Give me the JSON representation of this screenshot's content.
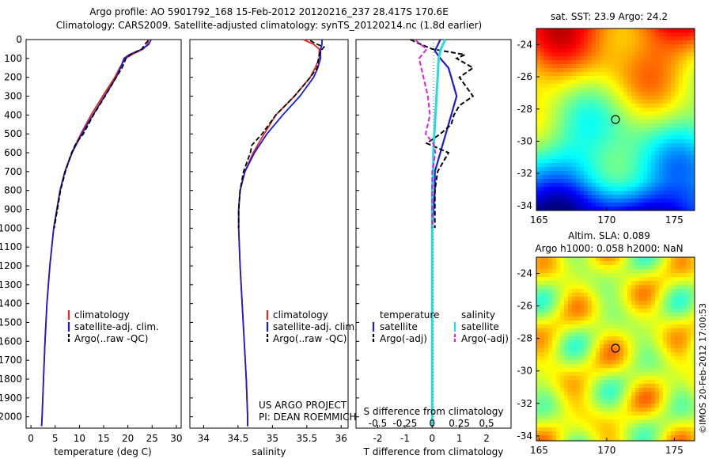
{
  "header": {
    "line1": "Argo profile: AO 5901792_168 15-Feb-2012 20120216_237 28.417S 170.6E",
    "line2": "Climatology: CARS2009. Satellite-adjusted climatology: synTS_20120214.nc (1.8d earlier)"
  },
  "colors": {
    "climatology": "#e8251c",
    "satellite_adj": "#1a1ad8",
    "argo": "#000000",
    "sal_satellite": "#22dddd",
    "sal_argo": "#dd22dd"
  },
  "depth_axis": {
    "ticks": [
      "0",
      "100",
      "200",
      "300",
      "400",
      "500",
      "600",
      "700",
      "800",
      "900",
      "1000",
      "1100",
      "1200",
      "1300",
      "1400",
      "1500",
      "1600",
      "1700",
      "1800",
      "1900",
      "2000"
    ]
  },
  "panels": {
    "temperature": {
      "xlabel": "temperature (deg C)",
      "xticks": [
        "0",
        "5",
        "10",
        "15",
        "20",
        "25",
        "30"
      ],
      "legend": [
        "climatology",
        "satellite-adj. clim.",
        "Argo(..raw -QC)"
      ]
    },
    "salinity": {
      "xlabel": "salinity",
      "xticks": [
        "34",
        "34.5",
        "35",
        "35.5",
        "36"
      ],
      "legend": [
        "climatology",
        "satellite-adj. clim.",
        "Argo(..raw -QC)"
      ],
      "credit1": "US ARGO PROJECT",
      "credit2": "PI: DEAN ROEMMICH"
    },
    "difference": {
      "legend_title_t": "temperature",
      "legend_title_s": "salinity",
      "legend_t": [
        "satellite",
        "Argo(-adj)"
      ],
      "legend_s": [
        "satellite",
        "Argo(-adj)"
      ],
      "top_label": "S difference from climatology",
      "top_ticks": [
        "-0.5",
        "-0.25",
        "0",
        "0.25",
        "0.5"
      ],
      "bottom_ticks": [
        "-2",
        "-1",
        "0",
        "1",
        "2"
      ],
      "xlabel": "T difference from climatology"
    }
  },
  "maps": {
    "sst": {
      "title": "sat. SST: 23.9 Argo: 24.2",
      "yticks": [
        "-24",
        "-26",
        "-28",
        "-30",
        "-32",
        "-34"
      ],
      "xticks": [
        "165",
        "170",
        "175"
      ]
    },
    "sla": {
      "title1": "Altim. SLA: 0.089",
      "title2": "Argo h1000: 0.058 h2000: NaN",
      "yticks": [
        "-24",
        "-26",
        "-28",
        "-30",
        "-32",
        "-34"
      ],
      "xticks": [
        "165",
        "170",
        "175"
      ]
    },
    "footer": "©IMOS 20-Feb-2012 17:00:53"
  },
  "chart_data": [
    {
      "type": "line",
      "ylabel": "",
      "xlabel": "temperature (deg C)",
      "xlim": [
        -1,
        31
      ],
      "ylim": [
        2060,
        0
      ],
      "series": [
        {
          "name": "climatology",
          "depth": [
            0,
            25,
            50,
            80,
            100,
            150,
            200,
            300,
            400,
            500,
            600,
            700,
            800,
            1000,
            1200,
            1400,
            1600,
            1800,
            2000,
            2050
          ],
          "values": [
            24.3,
            24.0,
            23.2,
            20.8,
            19.5,
            18.3,
            17.3,
            14.8,
            12.4,
            10.3,
            8.4,
            7.0,
            6.0,
            4.7,
            3.9,
            3.3,
            2.9,
            2.6,
            2.3,
            2.2
          ]
        },
        {
          "name": "satellite-adj. clim.",
          "depth": [
            0,
            25,
            50,
            80,
            100,
            150,
            200,
            300,
            400,
            500,
            600,
            700,
            800,
            1000,
            1200,
            1400,
            1600,
            1800,
            2000,
            2050
          ],
          "values": [
            24.8,
            24.3,
            23.0,
            20.3,
            19.2,
            18.5,
            17.6,
            15.2,
            12.8,
            10.5,
            8.5,
            7.0,
            6.0,
            4.7,
            3.9,
            3.3,
            2.9,
            2.6,
            2.3,
            2.2
          ]
        },
        {
          "name": "Argo(..raw -QC)",
          "depth": [
            5,
            25,
            50,
            80,
            100,
            150,
            200,
            300,
            400,
            500,
            550,
            600,
            700,
            800,
            1000
          ],
          "values": [
            24.2,
            23.5,
            22.9,
            20.5,
            19.6,
            18.8,
            17.6,
            15.3,
            12.9,
            10.8,
            9.3,
            8.4,
            7.1,
            6.1,
            4.8
          ]
        }
      ]
    },
    {
      "type": "line",
      "xlabel": "salinity",
      "xlim": [
        33.8,
        36.1
      ],
      "ylim": [
        2060,
        0
      ],
      "series": [
        {
          "name": "climatology",
          "depth": [
            0,
            25,
            50,
            100,
            150,
            200,
            300,
            400,
            500,
            600,
            700,
            800,
            900,
            1000,
            1200,
            1400,
            1600,
            1800,
            2000,
            2050
          ],
          "values": [
            35.45,
            35.6,
            35.68,
            35.68,
            35.62,
            35.55,
            35.32,
            35.05,
            34.88,
            34.72,
            34.6,
            34.53,
            34.51,
            34.51,
            34.53,
            34.56,
            34.59,
            34.62,
            34.64,
            34.64
          ]
        },
        {
          "name": "satellite-adj. clim.",
          "depth": [
            0,
            25,
            50,
            100,
            150,
            200,
            300,
            400,
            500,
            600,
            700,
            800,
            900,
            1000,
            1200,
            1400,
            1600,
            1800,
            2000,
            2050
          ],
          "values": [
            35.72,
            35.72,
            35.7,
            35.7,
            35.66,
            35.6,
            35.4,
            35.15,
            34.92,
            34.74,
            34.6,
            34.53,
            34.51,
            34.51,
            34.53,
            34.56,
            34.59,
            34.62,
            34.64,
            34.64
          ]
        },
        {
          "name": "Argo(..raw -QC)",
          "depth": [
            5,
            20,
            40,
            60,
            80,
            100,
            150,
            200,
            300,
            400,
            500,
            560,
            600,
            700,
            800,
            900,
            1000
          ],
          "values": [
            35.55,
            35.62,
            35.75,
            35.7,
            35.68,
            35.67,
            35.65,
            35.55,
            35.32,
            35.05,
            34.85,
            34.7,
            34.68,
            34.58,
            34.53,
            34.51,
            34.51
          ]
        }
      ]
    },
    {
      "type": "line",
      "xlabel": "T difference from climatology",
      "xlim": [
        -2.8,
        2.9
      ],
      "ylim": [
        2060,
        0
      ],
      "series": [
        {
          "name": "temperature satellite",
          "depth": [
            0,
            30,
            60,
            100,
            150,
            200,
            250,
            300,
            350,
            400,
            450,
            500,
            550,
            600,
            700,
            800,
            900,
            1000,
            1200,
            1400,
            1600,
            1800,
            2000,
            2050
          ],
          "values": [
            0.3,
            0.2,
            0.1,
            0.3,
            0.6,
            0.7,
            0.8,
            0.9,
            0.8,
            0.7,
            0.6,
            0.5,
            0.4,
            0.3,
            0.1,
            0.1,
            0.05,
            0.0,
            0.0,
            0.0,
            0.0,
            0.0,
            0.0,
            0.0
          ]
        },
        {
          "name": "temperature Argo(-adj)",
          "depth": [
            0,
            20,
            50,
            80,
            100,
            150,
            200,
            300,
            350,
            400,
            450,
            500,
            550,
            600,
            700,
            800,
            900,
            1000
          ],
          "values": [
            -0.8,
            -0.5,
            0.0,
            1.2,
            0.9,
            1.5,
            1.0,
            1.5,
            1.0,
            0.8,
            0.7,
            0.3,
            -0.2,
            0.6,
            0.2,
            0.1,
            0.1,
            0.1
          ]
        },
        {
          "name": "salinity satellite",
          "depth": [
            0,
            50,
            100,
            200,
            300,
            400,
            500,
            600,
            700,
            800,
            1000,
            1200,
            1400,
            1600,
            1800,
            2000,
            2050
          ],
          "values": [
            0.12,
            0.08,
            0.06,
            0.05,
            0.04,
            0.03,
            0.02,
            0.01,
            0.01,
            0.0,
            0.0,
            0.0,
            0.0,
            0.0,
            0.0,
            0.0,
            0.0
          ]
        },
        {
          "name": "salinity Argo(-adj)",
          "depth": [
            5,
            50,
            100,
            200,
            300,
            400,
            500,
            550,
            600,
            700,
            800,
            900,
            1000
          ],
          "values": [
            -0.15,
            -0.05,
            -0.12,
            -0.08,
            -0.04,
            -0.02,
            -0.06,
            0.01,
            0.03,
            0.0,
            0.0,
            0.0,
            0.0
          ]
        }
      ]
    },
    {
      "type": "heatmap",
      "title": "sat. SST: 23.9 Argo: 24.2",
      "xlim": [
        164.8,
        176.5
      ],
      "ylim": [
        -34.3,
        -23.0
      ],
      "marker": {
        "lon": 170.6,
        "lat": -28.417
      }
    },
    {
      "type": "heatmap",
      "title": "Altim. SLA: 0.089",
      "xlim": [
        164.8,
        176.5
      ],
      "ylim": [
        -34.3,
        -23.0
      ],
      "marker": {
        "lon": 170.6,
        "lat": -28.417
      }
    }
  ]
}
